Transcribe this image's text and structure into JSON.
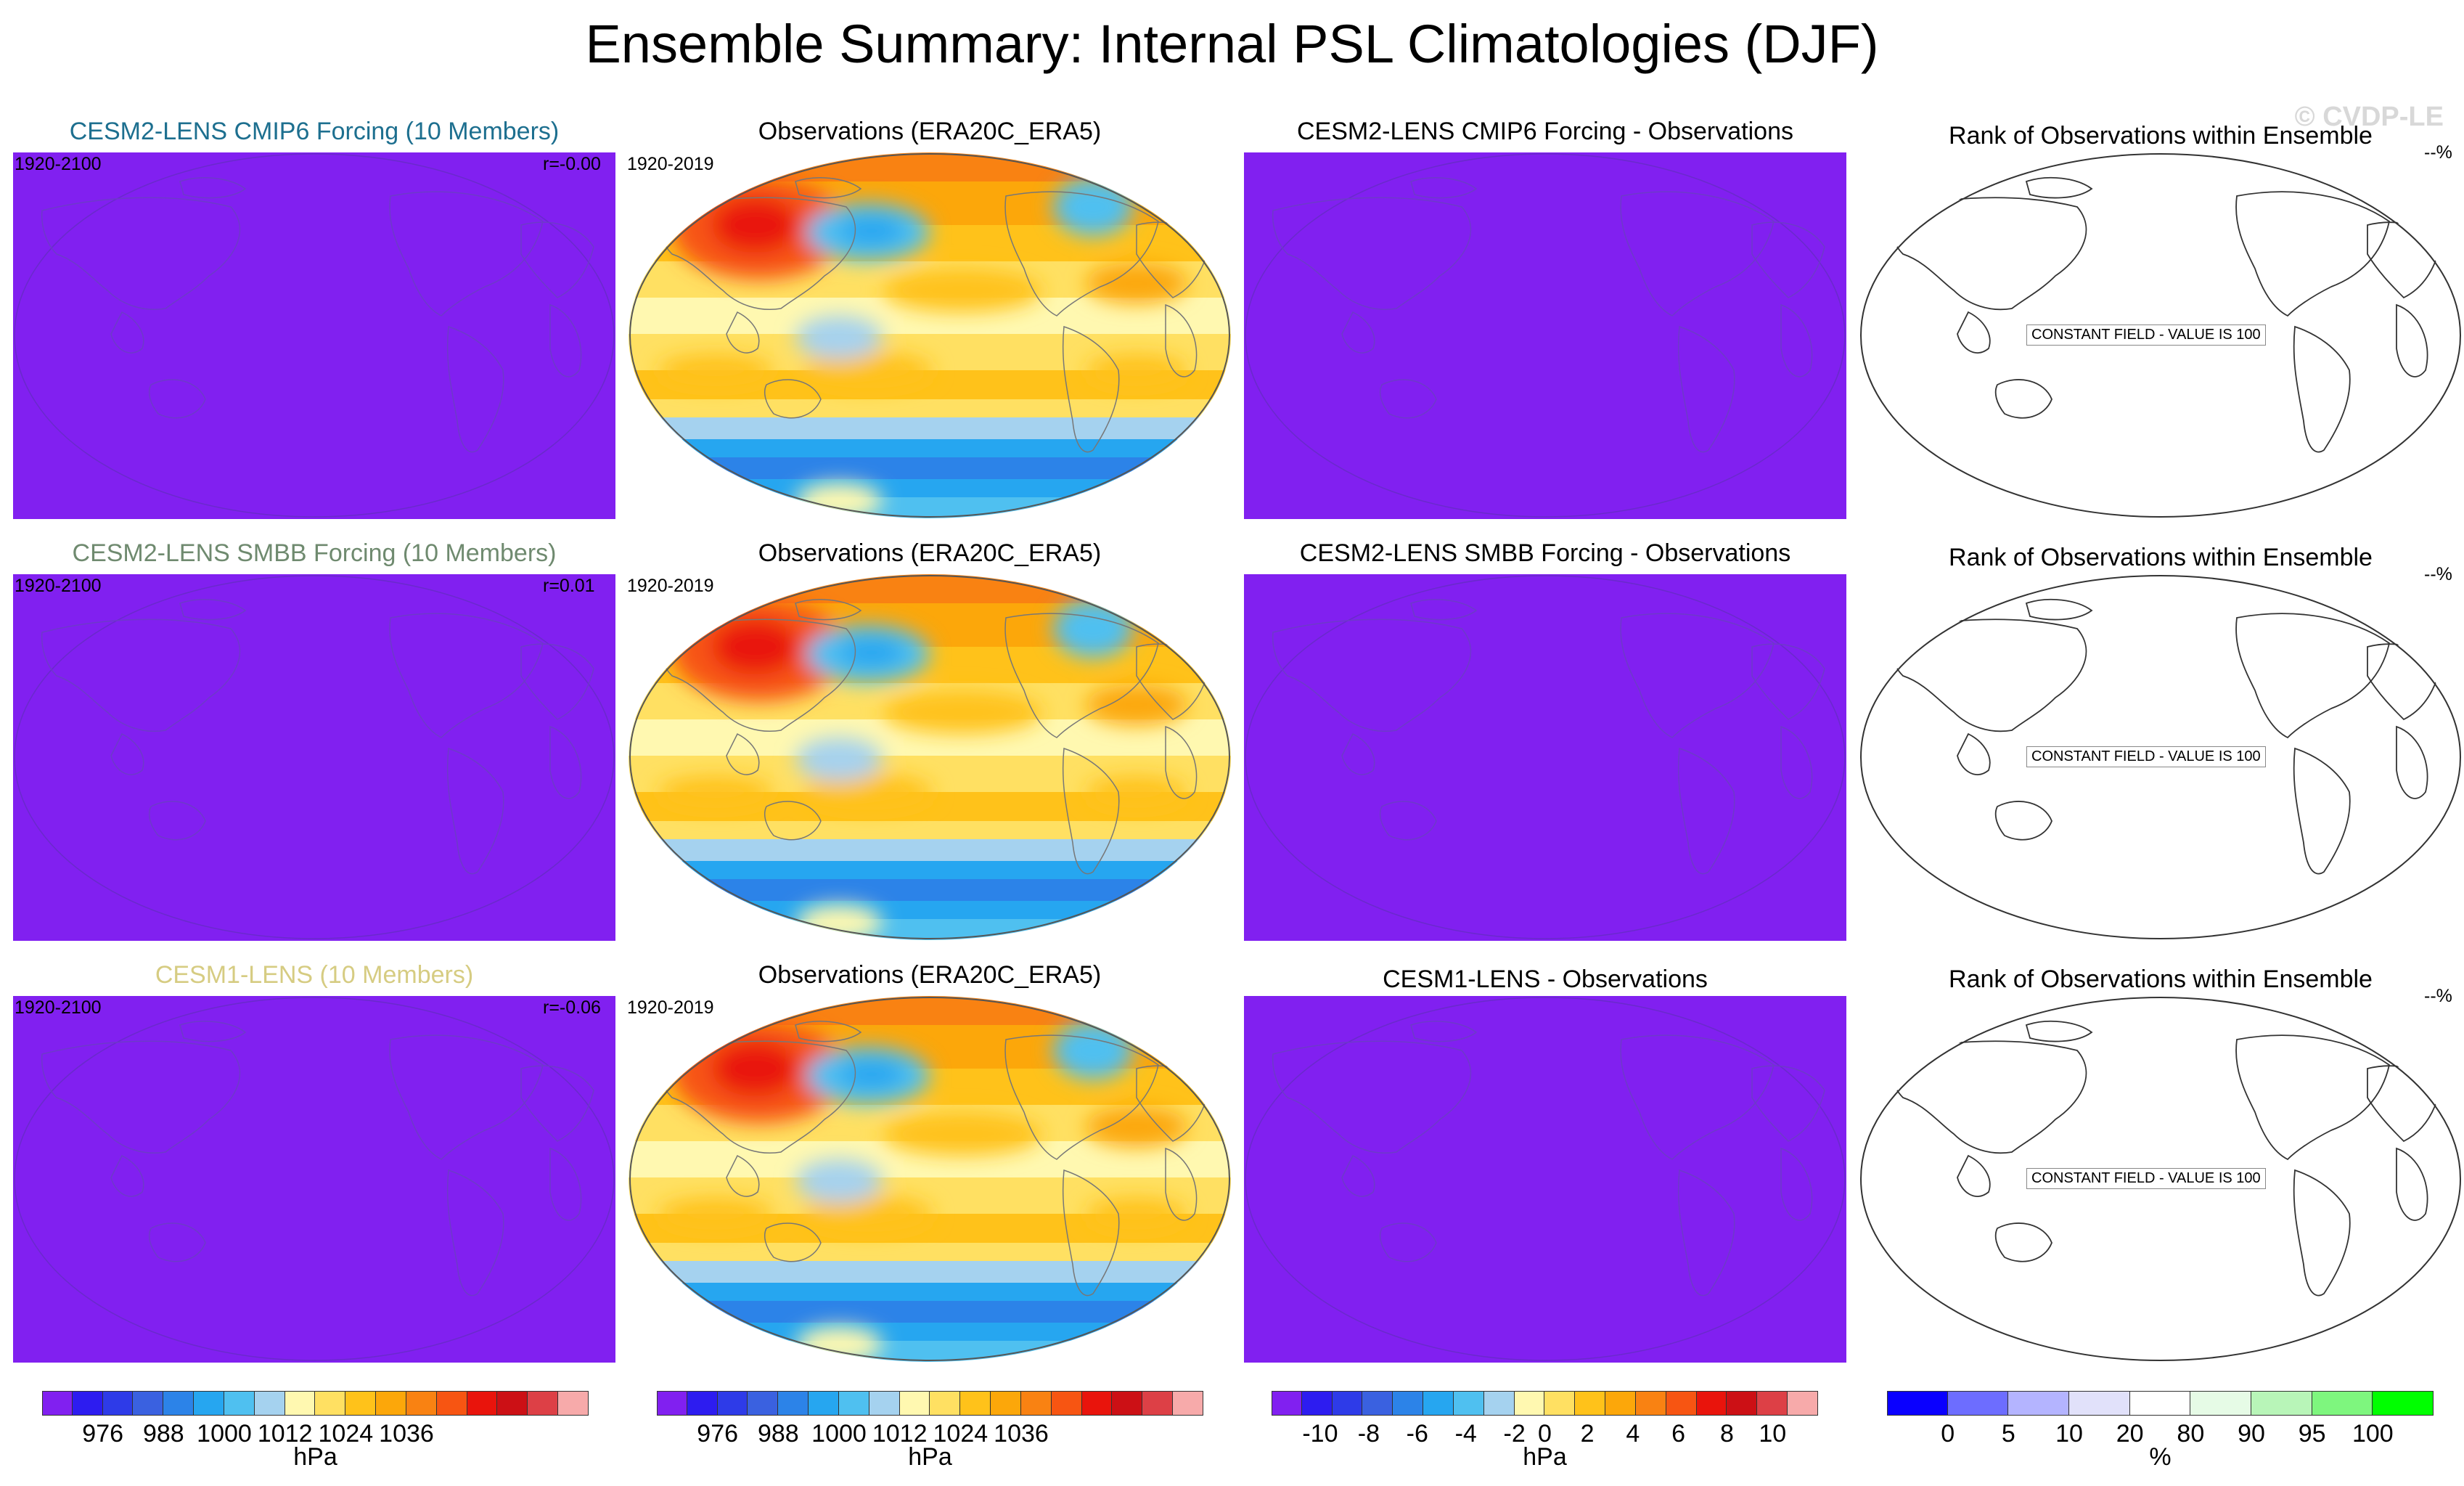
{
  "title": "Ensemble Summary: Internal PSL Climatologies (DJF)",
  "watermark": "© CVDP-LE",
  "colors": {
    "flat_fill": "#8120f0",
    "psl_palette": [
      "#8120f0",
      "#2d1cf0",
      "#2e3be8",
      "#3a61e0",
      "#2c83e8",
      "#26a6f0",
      "#4fc0f0",
      "#a5d2ef",
      "#fff8b0",
      "#ffe062",
      "#ffc21a",
      "#fca70a",
      "#f98212",
      "#f75512",
      "#e9140c",
      "#cc1015",
      "#dd4046",
      "#f7aaaa"
    ],
    "rank_palette": [
      "#0a00ff",
      "#6d6dff",
      "#b4b4ff",
      "#e1e1fa",
      "#ffffff",
      "#e6fbe6",
      "#b8f5b8",
      "#7ef67e",
      "#00ff00"
    ]
  },
  "rows": [
    {
      "model": {
        "title": "CESM2-LENS CMIP6 Forcing (10 Members)",
        "title_color": "#1d6f8f",
        "years": "1920-2100",
        "r": "r=-0.00"
      },
      "obs": {
        "title": "Observations (ERA20C_ERA5)",
        "years": "1920-2019"
      },
      "diff": {
        "title": "CESM2-LENS CMIP6 Forcing - Observations"
      },
      "rank": {
        "title": "Rank of Observations within Ensemble",
        "pct": "--%",
        "note": "CONSTANT FIELD - VALUE IS 100"
      }
    },
    {
      "model": {
        "title": "CESM2-LENS SMBB Forcing (10 Members)",
        "title_color": "#6f8a6f",
        "years": "1920-2100",
        "r": "r=0.01"
      },
      "obs": {
        "title": "Observations (ERA20C_ERA5)",
        "years": "1920-2019"
      },
      "diff": {
        "title": "CESM2-LENS SMBB Forcing - Observations"
      },
      "rank": {
        "title": "Rank of Observations within Ensemble",
        "pct": "--%",
        "note": "CONSTANT FIELD - VALUE IS 100"
      }
    },
    {
      "model": {
        "title": "CESM1-LENS (10 Members)",
        "title_color": "#d6cc82",
        "years": "1920-2100",
        "r": "r=-0.06"
      },
      "obs": {
        "title": "Observations (ERA20C_ERA5)",
        "years": "1920-2019"
      },
      "diff": {
        "title": "CESM1-LENS - Observations"
      },
      "rank": {
        "title": "Rank of Observations within Ensemble",
        "pct": "--%",
        "note": "CONSTANT FIELD - VALUE IS 100"
      }
    }
  ],
  "colorbars": [
    {
      "unit": "hPa",
      "labels": [
        "976",
        "988",
        "1000",
        "1012",
        "1024",
        "1036"
      ]
    },
    {
      "unit": "hPa",
      "labels": [
        "976",
        "988",
        "1000",
        "1012",
        "1024",
        "1036"
      ]
    },
    {
      "unit": "hPa",
      "labels": [
        "-10",
        "-8",
        "-6",
        "-4",
        "-2",
        "0",
        "2",
        "4",
        "6",
        "8",
        "10"
      ]
    },
    {
      "unit": "%",
      "labels": [
        "0",
        "5",
        "10",
        "20",
        "80",
        "90",
        "95",
        "100"
      ]
    }
  ],
  "chart_data": {
    "type": "heatmap",
    "title": "Ensemble Summary: Internal PSL Climatologies (DJF)",
    "variable": "PSL",
    "season": "DJF",
    "units": "hPa",
    "psl_levels": [
      976,
      980,
      984,
      988,
      992,
      996,
      1000,
      1004,
      1008,
      1012,
      1016,
      1020,
      1024,
      1028,
      1032,
      1036,
      1040
    ],
    "diff_levels": [
      -10,
      -9,
      -8,
      -7,
      -6,
      -5,
      -4,
      -3,
      -2,
      -1,
      0,
      1,
      2,
      3,
      4,
      5,
      6,
      7,
      8,
      9,
      10
    ],
    "rank_levels": [
      0,
      5,
      10,
      20,
      80,
      90,
      95,
      100
    ],
    "pattern_correlations": [
      {
        "model": "CESM2-LENS CMIP6 Forcing (10 Members)",
        "r": -0.0
      },
      {
        "model": "CESM2-LENS SMBB Forcing (10 Members)",
        "r": 0.01
      },
      {
        "model": "CESM1-LENS (10 Members)",
        "r": -0.06
      }
    ],
    "rank_constant_value": 100
  }
}
